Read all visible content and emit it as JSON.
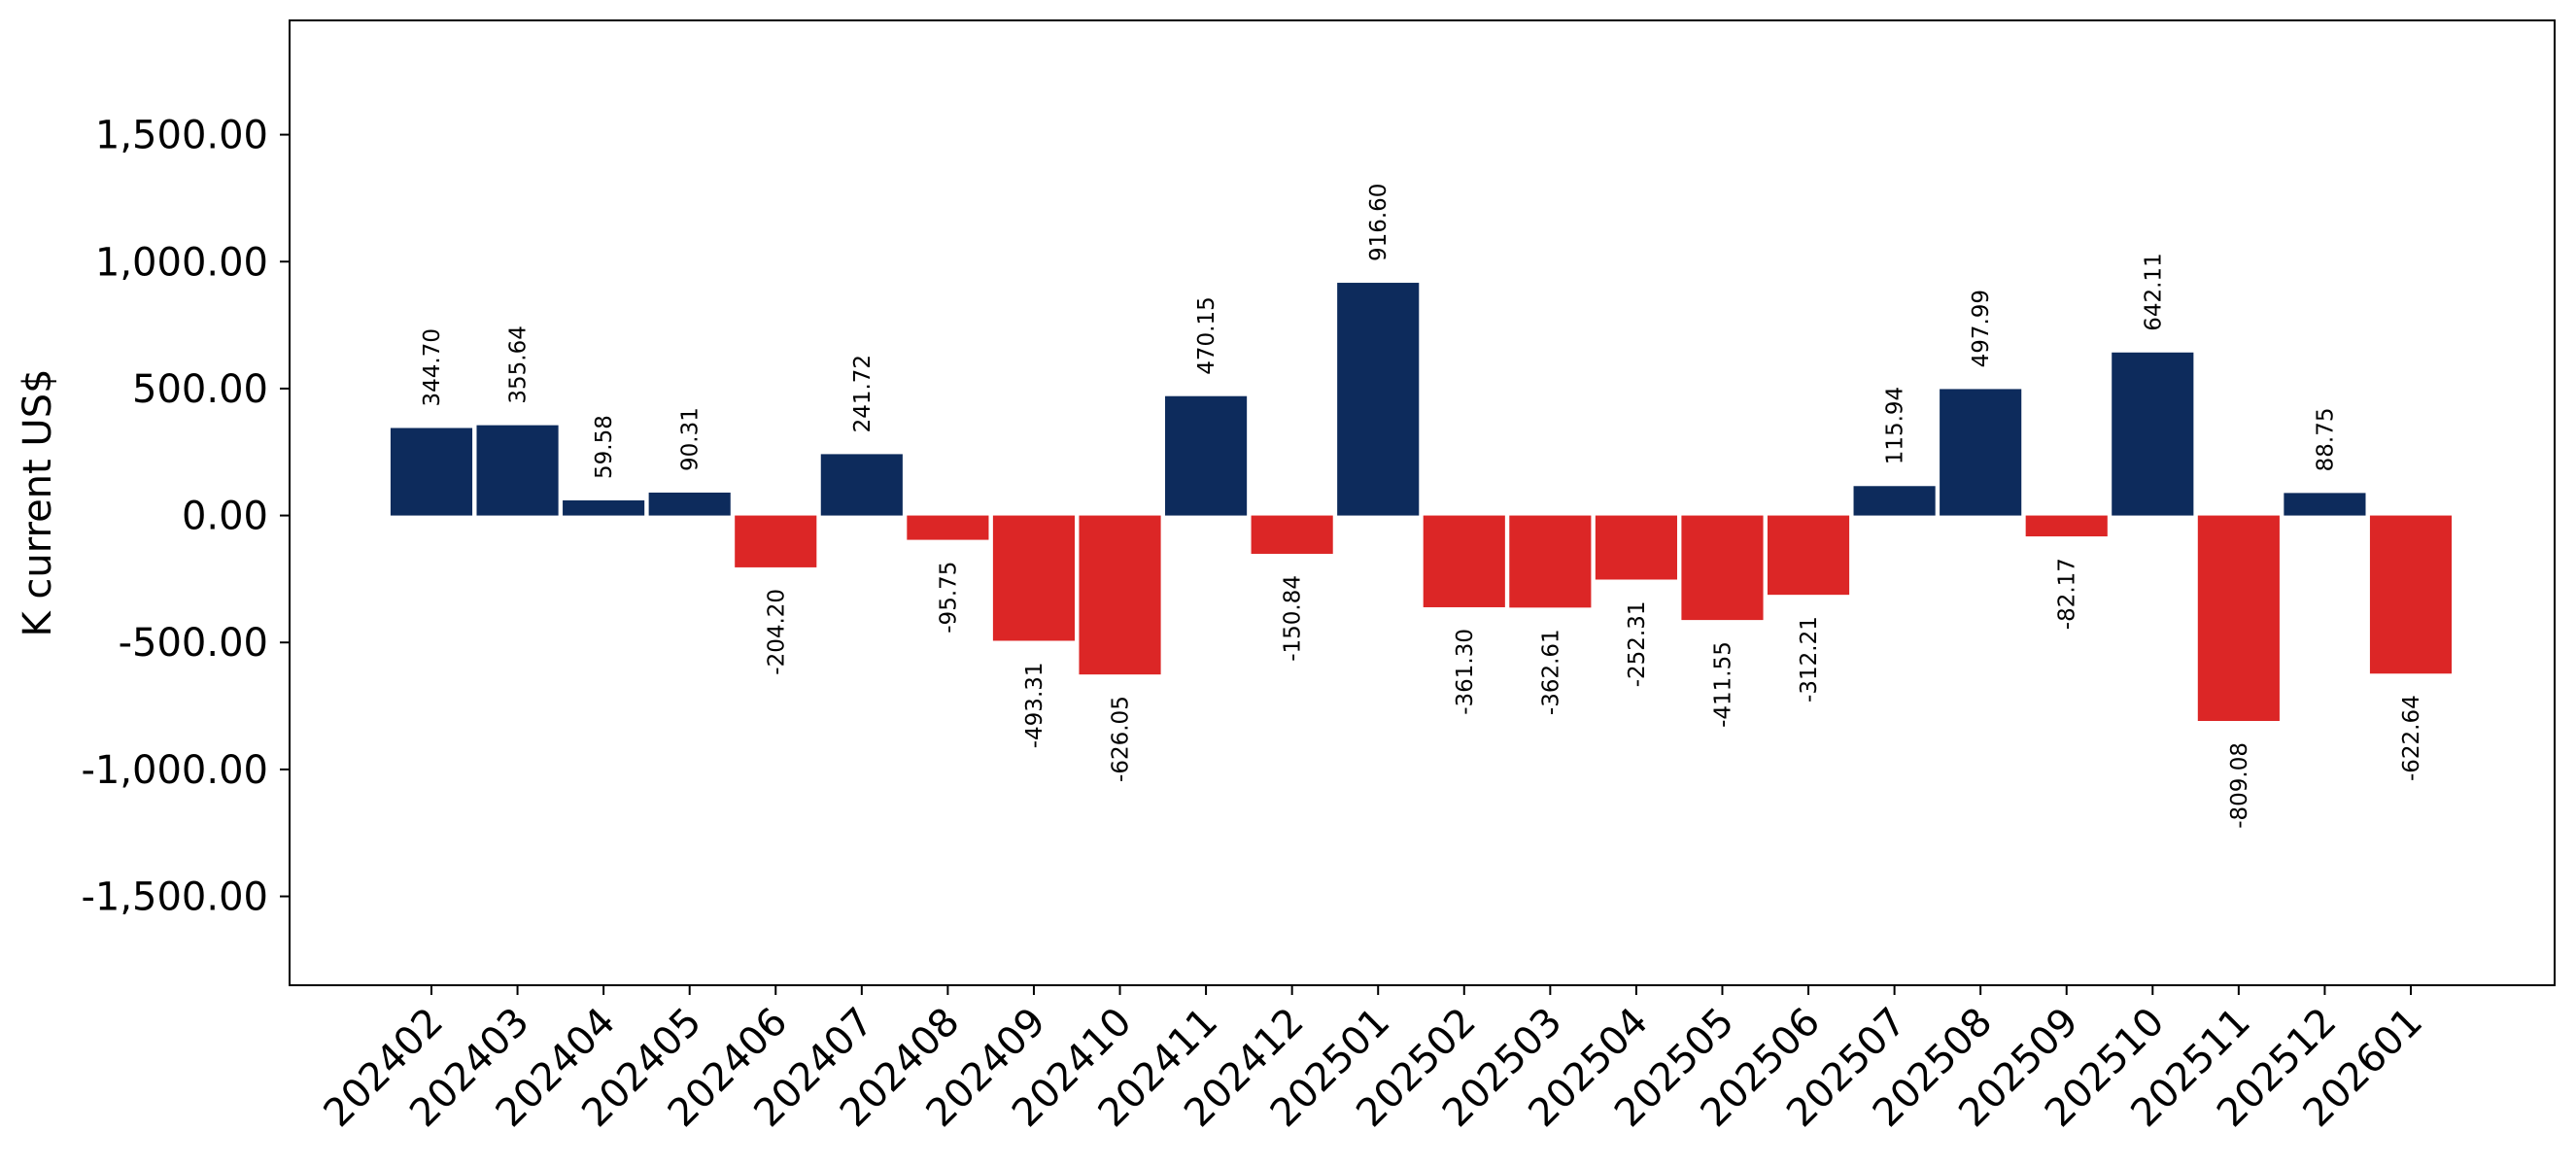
{
  "chart_data": {
    "type": "bar",
    "title": "",
    "xlabel": "",
    "ylabel": "K current US$",
    "ylim": [
      -1850,
      1950
    ],
    "yticks": [
      -1500,
      -1000,
      -500,
      0,
      500,
      1000,
      1500
    ],
    "ytick_labels": [
      "-1,500.00",
      "-1,000.00",
      "-500.00",
      "0.00",
      "500.00",
      "1,000.00",
      "1,500.00"
    ],
    "grid": false,
    "colors": {
      "positive": "#0d2b5c",
      "negative": "#dc2626"
    },
    "categories": [
      "202402",
      "202403",
      "202404",
      "202405",
      "202406",
      "202407",
      "202408",
      "202409",
      "202410",
      "202411",
      "202412",
      "202501",
      "202502",
      "202503",
      "202504",
      "202505",
      "202506",
      "202507",
      "202508",
      "202509",
      "202510",
      "202511",
      "202512",
      "202601"
    ],
    "values": [
      344.7,
      355.64,
      59.58,
      90.31,
      -204.2,
      241.72,
      -95.75,
      -493.31,
      -626.05,
      470.15,
      -150.84,
      916.6,
      -361.3,
      -362.61,
      -252.31,
      -411.55,
      -312.21,
      115.94,
      497.99,
      -82.17,
      642.11,
      -809.08,
      88.75,
      -622.64
    ],
    "value_labels": [
      "344.70",
      "355.64",
      "59.58",
      "90.31",
      "-204.20",
      "241.72",
      "-95.75",
      "-493.31",
      "-626.05",
      "470.15",
      "-150.84",
      "916.60",
      "-361.30",
      "-362.61",
      "-252.31",
      "-411.55",
      "-312.21",
      "115.94",
      "497.99",
      "-82.17",
      "642.11",
      "-809.08",
      "88.75",
      "-622.64"
    ]
  }
}
